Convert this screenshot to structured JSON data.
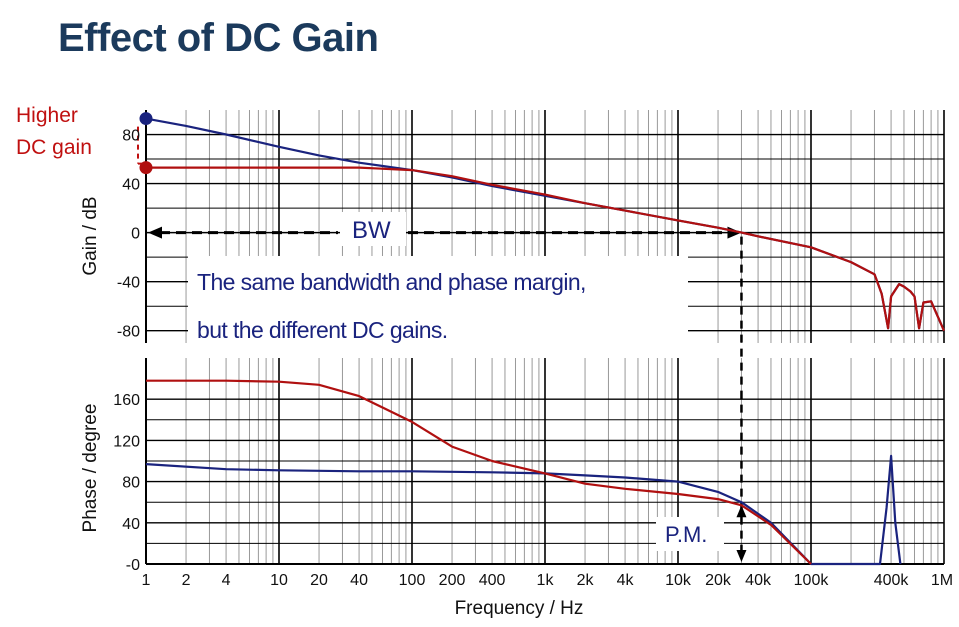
{
  "title": "Effect of DC Gain",
  "chart_data": [
    {
      "type": "line",
      "xscale": "log",
      "xlim": [
        1,
        1000000
      ],
      "ylim": [
        -90,
        100
      ],
      "ylabel": "Gain / dB",
      "yticks": [
        80,
        40,
        0,
        -40,
        -80
      ],
      "ytick_labels": [
        "80",
        "40",
        "0",
        "-40",
        "-80"
      ],
      "grid": true,
      "series": [
        {
          "color": "#1a237e",
          "x": [
            1,
            2,
            4,
            10,
            20,
            40,
            100,
            200,
            400,
            1000,
            2000,
            4000,
            10000,
            20000,
            30000,
            40000,
            100000,
            200000,
            300000,
            340000,
            380000,
            400000,
            460000,
            500000,
            560000,
            600000,
            650000,
            700000,
            800000,
            1000000
          ],
          "y": [
            93,
            87,
            80,
            70,
            63,
            57,
            51,
            45,
            38,
            30,
            24,
            18,
            10,
            4,
            0,
            -3,
            -12,
            -24,
            -34,
            -50,
            -78,
            -52,
            -42,
            -44,
            -48,
            -52,
            -78,
            -57,
            -56,
            -80
          ]
        },
        {
          "color": "#b01010",
          "x": [
            1,
            2,
            4,
            10,
            20,
            40,
            100,
            200,
            400,
            1000,
            2000,
            4000,
            10000,
            20000,
            30000,
            40000,
            100000,
            200000,
            300000,
            340000,
            380000,
            400000,
            460000,
            500000,
            560000,
            600000,
            650000,
            700000,
            800000,
            1000000
          ],
          "y": [
            53,
            53,
            53,
            53,
            53,
            53,
            51,
            46,
            39,
            31,
            24,
            18,
            10,
            4,
            0,
            -3,
            -12,
            -24,
            -34,
            -50,
            -78,
            -52,
            -42,
            -44,
            -48,
            -52,
            -78,
            -57,
            -56,
            -80
          ]
        }
      ],
      "annotations": {
        "higher": "Higher",
        "dc_gain": "DC gain",
        "bw": "BW",
        "box_line1": "The same bandwidth and phase margin,",
        "box_line2": "but the different DC gains."
      }
    },
    {
      "type": "line",
      "xscale": "log",
      "xlim": [
        1,
        1000000
      ],
      "ylim": [
        0,
        200
      ],
      "xlabel": "Frequency / Hz",
      "ylabel": "Phase / degree",
      "xticks": [
        1,
        2,
        4,
        10,
        20,
        40,
        100,
        200,
        400,
        1000,
        2000,
        4000,
        10000,
        20000,
        40000,
        100000,
        400000,
        1000000
      ],
      "xtick_labels": [
        "1",
        "2",
        "4",
        "10",
        "20",
        "40",
        "100",
        "200",
        "400",
        "1k",
        "2k",
        "4k",
        "10k",
        "20k",
        "40k",
        "100k",
        "400k",
        "1M"
      ],
      "yticks": [
        160,
        120,
        80,
        40,
        0
      ],
      "ytick_labels": [
        "160",
        "120",
        "80",
        "40",
        "-0"
      ],
      "grid": true,
      "series": [
        {
          "color": "#1a237e",
          "x": [
            1,
            4,
            10,
            40,
            100,
            400,
            1000,
            2000,
            4000,
            10000,
            20000,
            30000,
            50000,
            100000,
            330000,
            370000,
            400000,
            430000,
            470000
          ],
          "y": [
            97,
            92,
            91,
            90,
            90,
            89,
            88,
            86,
            84,
            80,
            70,
            60,
            40,
            0,
            0,
            55,
            105,
            40,
            0
          ]
        },
        {
          "color": "#b01010",
          "x": [
            1,
            4,
            10,
            20,
            40,
            100,
            200,
            400,
            1000,
            2000,
            4000,
            10000,
            20000,
            30000,
            50000,
            100000
          ],
          "y": [
            178,
            178,
            177,
            174,
            163,
            138,
            114,
            100,
            88,
            78,
            73,
            68,
            63,
            57,
            38,
            0
          ]
        }
      ],
      "annotations": {
        "pm": "P.M."
      }
    }
  ]
}
